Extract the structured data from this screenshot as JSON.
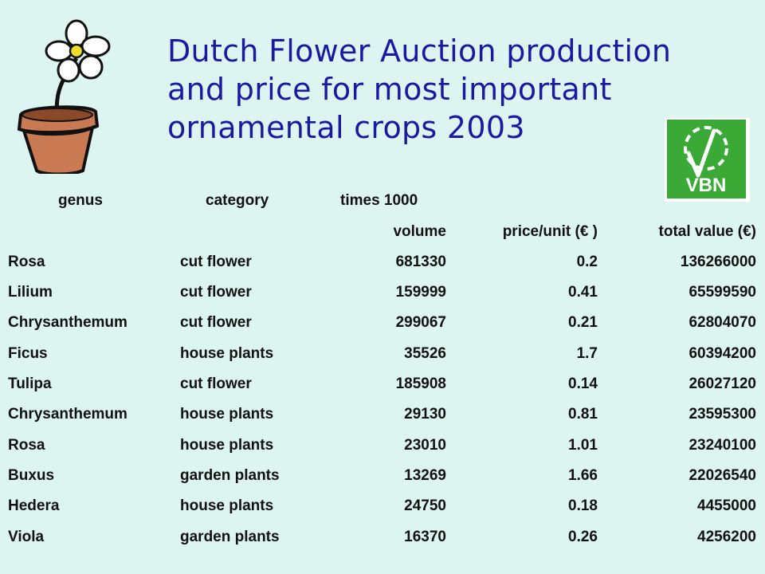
{
  "title": {
    "line1": "Dutch Flower Auction production",
    "line2": "and price for most important",
    "line3": "ornamental crops  2003"
  },
  "logo": {
    "text": "VBN",
    "color": "#3aa935"
  },
  "table": {
    "header1": {
      "genus": "genus",
      "category": "category",
      "times": "times 1000"
    },
    "header2": {
      "volume": "volume",
      "price": "price/unit (€ )",
      "total": "total value (€)"
    },
    "rows": [
      {
        "genus": "Rosa",
        "category": "cut flower",
        "volume": "681330",
        "price": "0.2",
        "total": "136266000"
      },
      {
        "genus": "Lilium",
        "category": "cut flower",
        "volume": "159999",
        "price": "0.41",
        "total": "65599590"
      },
      {
        "genus": "Chrysanthemum",
        "category": "cut flower",
        "volume": "299067",
        "price": "0.21",
        "total": "62804070"
      },
      {
        "genus": "Ficus",
        "category": "house plants",
        "volume": "35526",
        "price": "1.7",
        "total": "60394200"
      },
      {
        "genus": "Tulipa",
        "category": "cut flower",
        "volume": "185908",
        "price": "0.14",
        "total": "26027120"
      },
      {
        "genus": "Chrysanthemum",
        "category": "house plants",
        "volume": "29130",
        "price": "0.81",
        "total": "23595300"
      },
      {
        "genus": "Rosa",
        "category": "house plants",
        "volume": "23010",
        "price": "1.01",
        "total": "23240100"
      },
      {
        "genus": "Buxus",
        "category": "garden plants",
        "volume": "13269",
        "price": "1.66",
        "total": "22026540"
      },
      {
        "genus": "Hedera",
        "category": "house plants",
        "volume": "24750",
        "price": "0.18",
        "total": "4455000"
      },
      {
        "genus": "Viola",
        "category": "garden plants",
        "volume": "16370",
        "price": "0.26",
        "total": "4256200"
      }
    ]
  }
}
